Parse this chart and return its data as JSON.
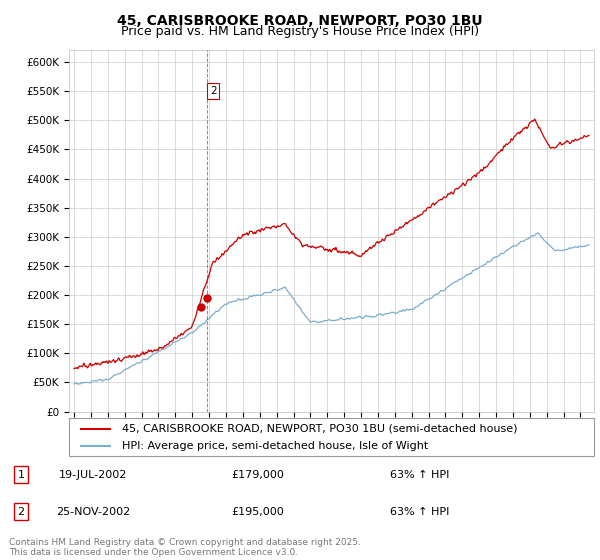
{
  "title": "45, CARISBROOKE ROAD, NEWPORT, PO30 1BU",
  "subtitle": "Price paid vs. HM Land Registry's House Price Index (HPI)",
  "legend_label_red": "45, CARISBROOKE ROAD, NEWPORT, PO30 1BU (semi-detached house)",
  "legend_label_blue": "HPI: Average price, semi-detached house, Isle of Wight",
  "footer": "Contains HM Land Registry data © Crown copyright and database right 2025.\nThis data is licensed under the Open Government Licence v3.0.",
  "transactions": [
    {
      "id": 1,
      "date": "19-JUL-2002",
      "price": 179000,
      "hpi_change": "63% ↑ HPI"
    },
    {
      "id": 2,
      "date": "25-NOV-2002",
      "price": 195000,
      "hpi_change": "63% ↑ HPI"
    }
  ],
  "vline_date": 2002.9,
  "vline_label": "2",
  "marker_dates": [
    2002.54,
    2002.9
  ],
  "marker_prices_red": [
    179000,
    195000
  ],
  "red_color": "#cc0000",
  "blue_color": "#7aadcc",
  "vline_color": "#cc0000",
  "ylim": [
    0,
    620000
  ],
  "yticks": [
    0,
    50000,
    100000,
    150000,
    200000,
    250000,
    300000,
    350000,
    400000,
    450000,
    500000,
    550000,
    600000
  ],
  "title_fontsize": 10,
  "subtitle_fontsize": 9,
  "tick_fontsize": 7.5,
  "legend_fontsize": 8,
  "footer_fontsize": 6.5
}
